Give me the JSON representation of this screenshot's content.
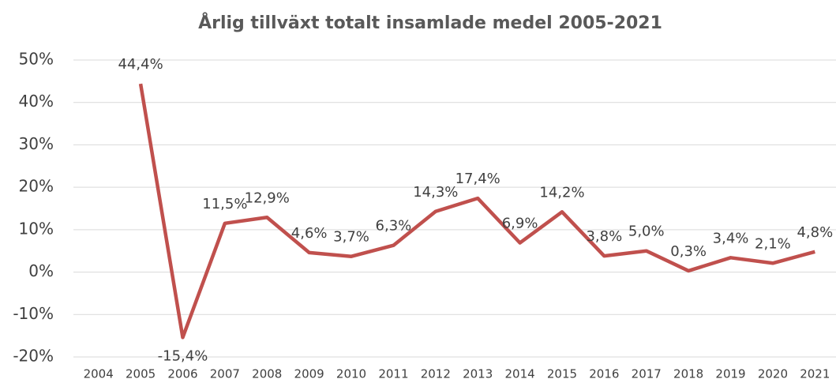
{
  "chart_data": {
    "type": "line",
    "title": "Årlig tillväxt totalt insamlade medel 2005-2021",
    "categories": [
      "2004",
      "2005",
      "2006",
      "2007",
      "2008",
      "2009",
      "2010",
      "2011",
      "2012",
      "2013",
      "2014",
      "2015",
      "2016",
      "2017",
      "2018",
      "2019",
      "2020",
      "2021"
    ],
    "series": [
      {
        "name": null,
        "color": "#c0504d",
        "values": [
          null,
          44.4,
          -15.4,
          11.5,
          12.9,
          4.6,
          3.7,
          6.3,
          14.3,
          17.4,
          6.9,
          14.2,
          3.8,
          5.0,
          0.3,
          3.4,
          2.1,
          4.8
        ],
        "value_labels": [
          null,
          "44,4%",
          "-15,4%",
          "11,5%",
          "12,9%",
          "4,6%",
          "3,7%",
          "6,3%",
          "14,3%",
          "17,4%",
          "6,9%",
          "14,2%",
          "3,8%",
          "5,0%",
          "0,3%",
          "3,4%",
          "2,1%",
          "4,8%"
        ]
      }
    ],
    "ylim": [
      -20,
      50
    ],
    "yticks": [
      {
        "value": -20,
        "label": "-20%"
      },
      {
        "value": -10,
        "label": "-10%"
      },
      {
        "value": 0,
        "label": "0%"
      },
      {
        "value": 10,
        "label": "10%"
      },
      {
        "value": 20,
        "label": "20%"
      },
      {
        "value": 30,
        "label": "30%"
      },
      {
        "value": 40,
        "label": "40%"
      },
      {
        "value": 50,
        "label": "50%"
      }
    ],
    "grid": true
  }
}
